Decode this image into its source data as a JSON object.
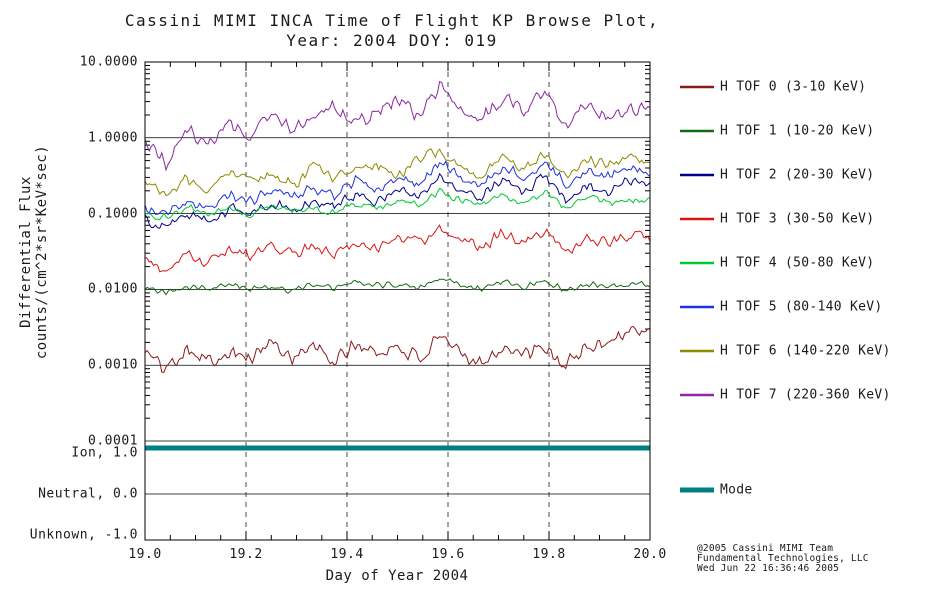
{
  "title": {
    "line1": "Cassini MIMI INCA Time of Flight KP Browse Plot,",
    "line2": "Year: 2004 DOY: 019"
  },
  "axes": {
    "ylabel_line1": "Differential Flux",
    "ylabel_line2": "counts/(cm^2*sr*KeV*sec)",
    "xlabel": "Day of Year 2004",
    "y_ticks": [
      "10.0000",
      "1.0000",
      "0.1000",
      "0.0100",
      "0.0010",
      "0.0001"
    ],
    "x_ticks": [
      "19.0",
      "19.2",
      "19.4",
      "19.6",
      "19.8",
      "20.0"
    ],
    "mode_levels": [
      "Ion, 1.0",
      "Neutral, 0.0",
      "Unknown, -1.0"
    ]
  },
  "chart_data": {
    "type": "line",
    "x_range": [
      19.0,
      20.0
    ],
    "y_scale": "log",
    "y_range": [
      0.0001,
      10.0
    ],
    "grid": {
      "horizontal": "solid at each decade",
      "vertical": "dashed at 19.2, 19.4, 19.6, 19.8"
    },
    "series": [
      {
        "name": "H TOF 0",
        "energy": "3-10 KeV",
        "color": "#8b1a1a",
        "noise_dex": 0.13,
        "values": [
          0.0015,
          0.0009,
          0.0018,
          0.0011,
          0.0016,
          0.0012,
          0.002,
          0.0013,
          0.0017,
          0.0011,
          0.0019,
          0.0014,
          0.0018,
          0.0012,
          0.0021,
          0.0015,
          0.0011,
          0.0018,
          0.0013,
          0.0016,
          0.001,
          0.0017,
          0.0021,
          0.003,
          0.0026
        ]
      },
      {
        "name": "H TOF 1",
        "energy": "10-20 KeV",
        "color": "#156b15",
        "noise_dex": 0.05,
        "values": [
          0.01,
          0.0092,
          0.011,
          0.0098,
          0.0118,
          0.0102,
          0.011,
          0.0094,
          0.012,
          0.01,
          0.0128,
          0.011,
          0.012,
          0.0104,
          0.0138,
          0.0118,
          0.01,
          0.013,
          0.011,
          0.0132,
          0.0098,
          0.012,
          0.011,
          0.0122,
          0.0112
        ]
      },
      {
        "name": "H TOF 2",
        "energy": "20-30 KeV",
        "color": "#00008b",
        "noise_dex": 0.09,
        "values": [
          0.085,
          0.065,
          0.1,
          0.08,
          0.12,
          0.095,
          0.14,
          0.11,
          0.15,
          0.12,
          0.18,
          0.14,
          0.21,
          0.16,
          0.3,
          0.2,
          0.17,
          0.28,
          0.2,
          0.31,
          0.15,
          0.25,
          0.2,
          0.28,
          0.24
        ]
      },
      {
        "name": "H TOF 3",
        "energy": "30-50 KeV",
        "color": "#dc1414",
        "noise_dex": 0.09,
        "values": [
          0.024,
          0.019,
          0.03,
          0.022,
          0.034,
          0.027,
          0.04,
          0.03,
          0.036,
          0.029,
          0.044,
          0.034,
          0.05,
          0.04,
          0.06,
          0.045,
          0.035,
          0.055,
          0.042,
          0.06,
          0.03,
          0.05,
          0.04,
          0.052,
          0.046
        ]
      },
      {
        "name": "H TOF 4",
        "energy": "50-80 KeV",
        "color": "#00c832",
        "noise_dex": 0.06,
        "values": [
          0.1,
          0.088,
          0.12,
          0.1,
          0.115,
          0.1,
          0.13,
          0.11,
          0.12,
          0.105,
          0.14,
          0.12,
          0.15,
          0.13,
          0.2,
          0.15,
          0.13,
          0.18,
          0.14,
          0.19,
          0.12,
          0.16,
          0.135,
          0.155,
          0.145
        ]
      },
      {
        "name": "H TOF 5",
        "energy": "80-140 KeV",
        "color": "#1e32dc",
        "noise_dex": 0.09,
        "values": [
          0.12,
          0.09,
          0.15,
          0.11,
          0.18,
          0.14,
          0.21,
          0.16,
          0.22,
          0.17,
          0.26,
          0.2,
          0.31,
          0.24,
          0.46,
          0.3,
          0.24,
          0.42,
          0.3,
          0.46,
          0.24,
          0.36,
          0.3,
          0.4,
          0.34
        ]
      },
      {
        "name": "H TOF 6",
        "energy": "140-220 KeV",
        "color": "#8c8c00",
        "noise_dex": 0.09,
        "values": [
          0.25,
          0.17,
          0.3,
          0.22,
          0.34,
          0.27,
          0.31,
          0.24,
          0.4,
          0.3,
          0.36,
          0.46,
          0.32,
          0.52,
          0.68,
          0.4,
          0.34,
          0.56,
          0.4,
          0.62,
          0.3,
          0.5,
          0.44,
          0.56,
          0.5
        ]
      },
      {
        "name": "H TOF 7",
        "energy": "220-360 KeV",
        "color": "#8c28a0",
        "noise_dex": 0.12,
        "values": [
          1.0,
          0.45,
          1.3,
          0.8,
          1.5,
          1.1,
          2.0,
          1.3,
          1.8,
          2.4,
          1.5,
          2.2,
          3.2,
          1.9,
          5.0,
          2.4,
          1.7,
          3.6,
          2.1,
          4.2,
          1.4,
          2.9,
          2.0,
          2.6,
          2.3
        ]
      }
    ],
    "mode_series": {
      "name": "Mode",
      "color": "#008080",
      "value": 1.0,
      "meaning": "Ion"
    }
  },
  "legend": {
    "entries": [
      {
        "label": "H TOF 0 (3-10 KeV)",
        "color": "#8b1a1a"
      },
      {
        "label": "H TOF 1 (10-20 KeV)",
        "color": "#156b15"
      },
      {
        "label": "H TOF 2 (20-30 KeV)",
        "color": "#00008b"
      },
      {
        "label": "H TOF 3 (30-50 KeV)",
        "color": "#dc1414"
      },
      {
        "label": "H TOF 4 (50-80 KeV)",
        "color": "#00c832"
      },
      {
        "label": "H TOF 5 (80-140 KeV)",
        "color": "#1e32dc"
      },
      {
        "label": "H TOF 6 (140-220 KeV)",
        "color": "#8c8c00"
      },
      {
        "label": "H TOF 7 (220-360 KeV)",
        "color": "#8c28a0"
      }
    ],
    "mode_label": "Mode",
    "mode_color": "#008080"
  },
  "credits": [
    "@2005 Cassini MIMI Team",
    "Fundamental Technologies, LLC",
    "Wed Jun 22 16:36:46 2005"
  ]
}
